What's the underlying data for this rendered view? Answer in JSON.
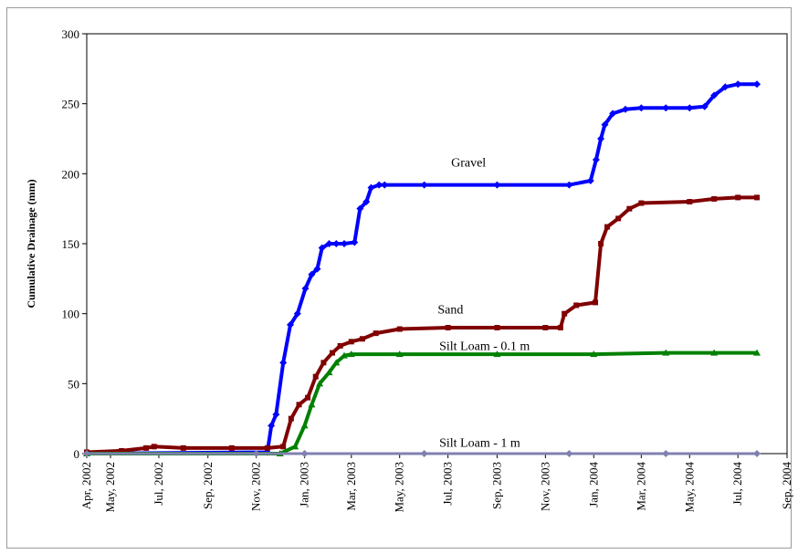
{
  "chart_data": {
    "type": "line",
    "title": "",
    "xlabel": "",
    "ylabel": "Cumulative Drainage (mm)",
    "ylim": [
      0,
      300
    ],
    "xlim": [
      "2002-04-01",
      "2004-09-01"
    ],
    "yticks": [
      0,
      50,
      100,
      150,
      200,
      250,
      300
    ],
    "xticks": [
      "Apr, 2002",
      "May, 2002",
      "Jul, 2002",
      "Sep, 2002",
      "Nov, 2002",
      "Jan, 2003",
      "Mar, 2003",
      "May, 2003",
      "Jul, 2003",
      "Sep, 2003",
      "Nov, 2003",
      "Jan, 2004",
      "Mar, 2004",
      "May, 2004",
      "Jul, 2004",
      "Sep, 2004"
    ],
    "xtick_dates": [
      "2002-04-01",
      "2002-05-01",
      "2002-07-01",
      "2002-09-01",
      "2002-11-01",
      "2003-01-01",
      "2003-03-01",
      "2003-05-01",
      "2003-07-01",
      "2003-09-01",
      "2003-11-01",
      "2004-01-01",
      "2004-03-01",
      "2004-05-01",
      "2004-07-01",
      "2004-09-01"
    ],
    "grid": false,
    "legend": "none",
    "series": [
      {
        "name": "Gravel",
        "color": "#0000ff",
        "marker": "diamond",
        "x": [
          "2002-04-01",
          "2002-11-15",
          "2002-11-20",
          "2002-11-26",
          "2002-12-05",
          "2002-12-14",
          "2002-12-23",
          "2003-01-02",
          "2003-01-10",
          "2003-01-17",
          "2003-01-23",
          "2003-02-01",
          "2003-02-10",
          "2003-02-20",
          "2003-03-05",
          "2003-03-12",
          "2003-03-20",
          "2003-03-26",
          "2003-04-05",
          "2003-04-12",
          "2003-06-01",
          "2003-09-01",
          "2003-12-01",
          "2003-12-28",
          "2004-01-04",
          "2004-01-10",
          "2004-01-15",
          "2004-01-25",
          "2004-02-10",
          "2004-03-01",
          "2004-04-01",
          "2004-05-01",
          "2004-05-20",
          "2004-06-01",
          "2004-06-15",
          "2004-07-01",
          "2004-07-25"
        ],
        "y": [
          0,
          1,
          20,
          28,
          65,
          92,
          100,
          118,
          128,
          132,
          147,
          150,
          150,
          150,
          151,
          175,
          180,
          190,
          192,
          192,
          192,
          192,
          192,
          195,
          210,
          225,
          235,
          243,
          246,
          247,
          247,
          247,
          248,
          256,
          262,
          264,
          264
        ]
      },
      {
        "name": "Sand",
        "color": "#800000",
        "marker": "square",
        "x": [
          "2002-04-01",
          "2002-05-15",
          "2002-06-15",
          "2002-06-25",
          "2002-08-01",
          "2002-10-01",
          "2002-11-15",
          "2002-12-05",
          "2002-12-15",
          "2002-12-25",
          "2003-01-05",
          "2003-01-15",
          "2003-01-25",
          "2003-02-05",
          "2003-02-15",
          "2003-03-01",
          "2003-03-15",
          "2003-04-01",
          "2003-05-01",
          "2003-07-01",
          "2003-09-01",
          "2003-11-01",
          "2003-11-20",
          "2003-11-25",
          "2003-12-10",
          "2004-01-03",
          "2004-01-10",
          "2004-01-18",
          "2004-02-01",
          "2004-02-15",
          "2004-03-01",
          "2004-05-01",
          "2004-06-01",
          "2004-07-01",
          "2004-07-25"
        ],
        "y": [
          1,
          2,
          4,
          5,
          4,
          4,
          4,
          5,
          25,
          35,
          40,
          55,
          65,
          72,
          77,
          80,
          82,
          86,
          89,
          90,
          90,
          90,
          90,
          100,
          106,
          108,
          150,
          162,
          168,
          175,
          179,
          180,
          182,
          183,
          183
        ]
      },
      {
        "name": "Silt Loam - 0.1 m",
        "color": "#008000",
        "marker": "triangle",
        "x": [
          "2002-04-01",
          "2002-12-01",
          "2002-12-20",
          "2003-01-01",
          "2003-01-10",
          "2003-01-20",
          "2003-02-01",
          "2003-02-10",
          "2003-02-20",
          "2003-03-01",
          "2003-05-01",
          "2003-09-01",
          "2004-01-01",
          "2004-04-01",
          "2004-06-01",
          "2004-07-25"
        ],
        "y": [
          0,
          0,
          5,
          20,
          35,
          50,
          58,
          65,
          70,
          71,
          71,
          71,
          71,
          72,
          72,
          72
        ]
      },
      {
        "name": "Silt Loam - 1 m",
        "color": "#8080b0",
        "marker": "diamond",
        "x": [
          "2002-04-01",
          "2002-11-01",
          "2003-01-01",
          "2003-06-01",
          "2003-12-01",
          "2004-04-01",
          "2004-07-25"
        ],
        "y": [
          0,
          0,
          0,
          0,
          0,
          0,
          0
        ]
      }
    ],
    "annotations": [
      {
        "text": "Gravel",
        "series": 0
      },
      {
        "text": "Sand",
        "series": 1
      },
      {
        "text": "Silt Loam - 0.1 m",
        "series": 2
      },
      {
        "text": "Silt Loam - 1 m",
        "series": 3
      }
    ]
  }
}
